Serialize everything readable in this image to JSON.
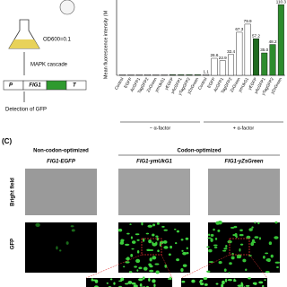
{
  "schematic": {
    "od": "OD600=0.1",
    "mapk": "MAPK cascade",
    "promoter": "P",
    "gene": "FIG1",
    "terminator": "T",
    "detection": "Detection of GFP"
  },
  "chart_data": {
    "type": "bar",
    "y_label": "Mean fluorescence intensity (M",
    "categories": [
      "Control",
      "EGFP",
      "AcGFP1",
      "TagGFP2",
      "ZsGreen",
      "ymUkG1",
      "yEGFP",
      "yAcGFP1",
      "yTagGFP2",
      "yZsGreen",
      "Control",
      "EGFP",
      "AcGFP1",
      "TagGFP2",
      "ZsGreen",
      "ymUkG1",
      "yEGFP",
      "yAcGFP1",
      "yTagGFP2",
      "yZsGreen"
    ],
    "values": [
      1,
      1,
      1,
      1,
      1,
      1,
      1,
      1,
      1,
      1,
      1.1,
      26.6,
      22.9,
      32.4,
      67.3,
      79.9,
      57.2,
      35.0,
      48.2,
      110.3
    ],
    "value_labels": [
      null,
      null,
      null,
      null,
      null,
      null,
      null,
      null,
      null,
      null,
      "1.1",
      "26.6",
      "22.9",
      "32.4",
      "67.3",
      "79.9",
      "57.2",
      "35.0",
      "48.2",
      "110.3"
    ],
    "colors": [
      "#ffffff",
      "#ffffff",
      "#ffffff",
      "#ffffff",
      "#ffffff",
      "#ffffff",
      "#1f6b1f",
      "#2e8b2e",
      "#2e8b2e",
      "#2e8b2e",
      "#ffffff",
      "#ffffff",
      "#ffffff",
      "#ffffff",
      "#ffffff",
      "#ffffff",
      "#1f6b1f",
      "#2e8b2e",
      "#2e8b2e",
      "#2e8b2e"
    ],
    "ylim": [
      0,
      112
    ],
    "groups": [
      "− α-factor",
      "+ α-factor"
    ]
  },
  "panel_c": {
    "label": "(C)",
    "left_header": "Non-codon-optimized",
    "right_header": "Codon-optimized",
    "columns": [
      "FIG1-EGFP",
      "FIG1-ymUkG1",
      "FIG1-yZsGreen"
    ],
    "rows": [
      "Bright field",
      "GFP"
    ]
  }
}
